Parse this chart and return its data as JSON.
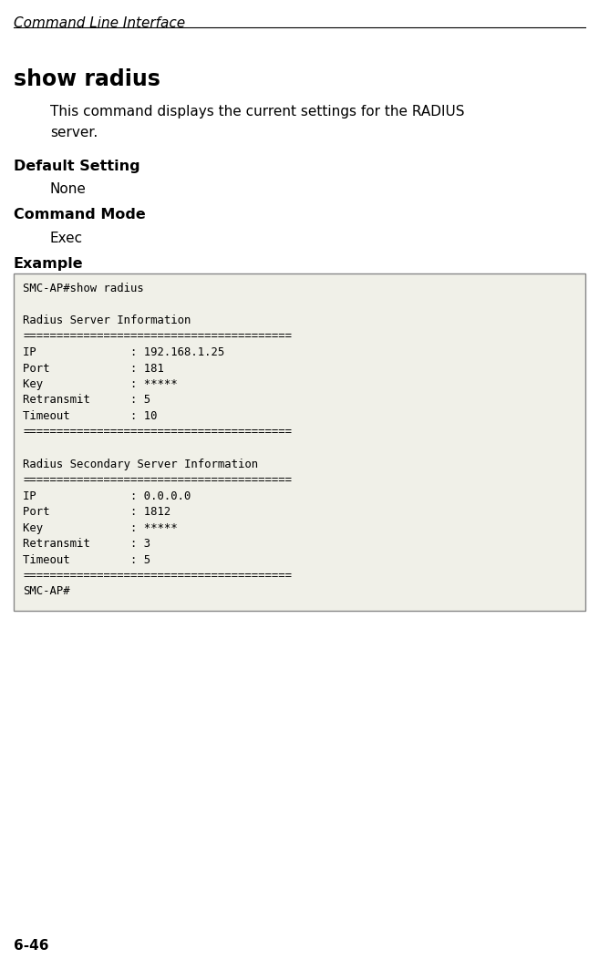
{
  "page_label": "Command Line Interface",
  "command_title": "show radius",
  "description_line1": "This command displays the current settings for the RADIUS",
  "description_line2": "server.",
  "section1_title": "Default Setting",
  "section1_body": "None",
  "section2_title": "Command Mode",
  "section2_body": "Exec",
  "section3_title": "Example",
  "terminal_lines": [
    "SMC-AP#show radius",
    "",
    "Radius Server Information",
    "========================================",
    "IP              : 192.168.1.25",
    "Port            : 181",
    "Key             : *****",
    "Retransmit      : 5",
    "Timeout         : 10",
    "========================================",
    "",
    "Radius Secondary Server Information",
    "========================================",
    "IP              : 0.0.0.0",
    "Port            : 1812",
    "Key             : *****",
    "Retransmit      : 3",
    "Timeout         : 5",
    "========================================",
    "SMC-AP#"
  ],
  "page_number": "6-46",
  "bg_color": "#ffffff",
  "terminal_bg": "#f0f0e8",
  "terminal_border": "#888888",
  "text_color": "#000000",
  "fig_width": 6.57,
  "fig_height": 10.52,
  "dpi": 100
}
